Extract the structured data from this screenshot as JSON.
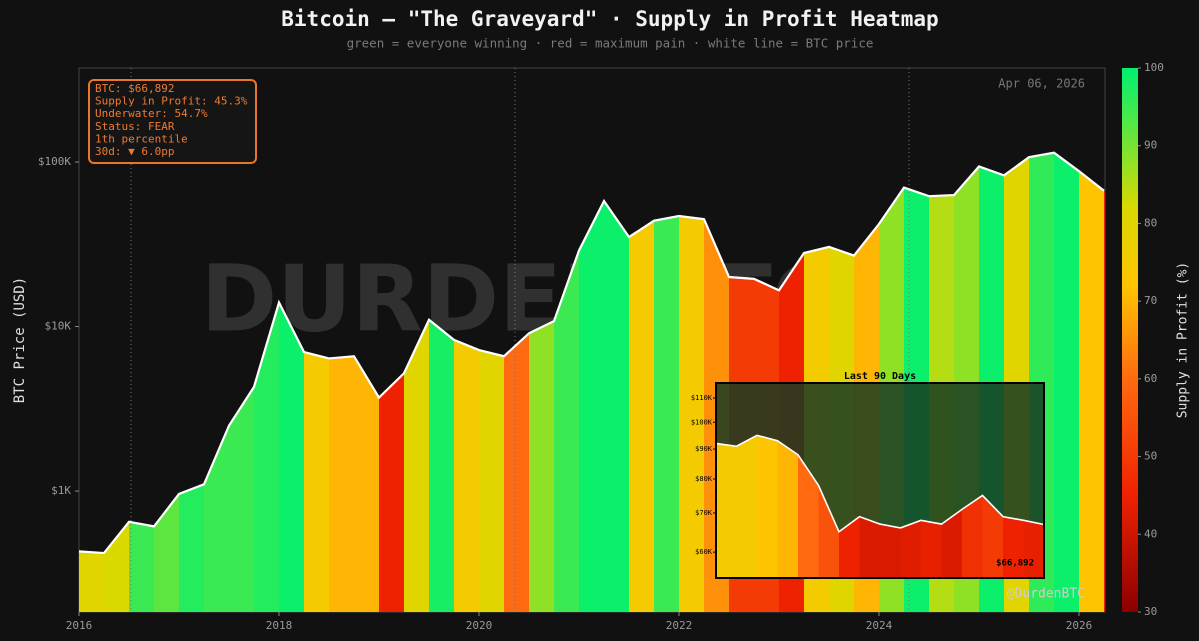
{
  "chart_data": {
    "type": "heatmap-line",
    "title": "Bitcoin — \"The Graveyard\"  ·  Supply in Profit Heatmap",
    "subtitle": "green = everyone winning  ·  red = maximum pain  ·  white line = BTC price",
    "y_label": "BTC Price (USD)",
    "colorbar_label": "Supply in Profit (%)",
    "date_label": "Apr 06, 2026",
    "watermark": "@DurdenBTC",
    "watermark_big": "DURDENBTC",
    "log_y": true,
    "xlim": [
      2016,
      2026.26
    ],
    "xticks": [
      2016,
      2018,
      2020,
      2022,
      2024,
      2026
    ],
    "ylim": [
      184,
      373000
    ],
    "yticks": [
      {
        "value": 1000,
        "label": "$1K"
      },
      {
        "value": 10000,
        "label": "$10K"
      },
      {
        "value": 100000,
        "label": "$100K"
      }
    ],
    "clim": [
      30,
      100
    ],
    "cticks": [
      30,
      40,
      50,
      60,
      70,
      80,
      90,
      100
    ],
    "colorscale": [
      {
        "value": 30,
        "color": "#8b0000"
      },
      {
        "value": 45,
        "color": "#ee2200"
      },
      {
        "value": 60,
        "color": "#ff6a10"
      },
      {
        "value": 72,
        "color": "#ffc400"
      },
      {
        "value": 82,
        "color": "#d9d900"
      },
      {
        "value": 92,
        "color": "#5ee640"
      },
      {
        "value": 100,
        "color": "#00f070"
      }
    ],
    "line_color": "#ffffff",
    "vlines": [
      2016.52,
      2020.36,
      2024.3
    ],
    "x": [
      2016.0,
      2016.25,
      2016.5,
      2016.75,
      2017.0,
      2017.25,
      2017.5,
      2017.75,
      2018.0,
      2018.25,
      2018.5,
      2018.75,
      2019.0,
      2019.25,
      2019.5,
      2019.75,
      2020.0,
      2020.25,
      2020.5,
      2020.75,
      2021.0,
      2021.25,
      2021.5,
      2021.75,
      2022.0,
      2022.25,
      2022.5,
      2022.75,
      2023.0,
      2023.25,
      2023.5,
      2023.75,
      2024.0,
      2024.25,
      2024.5,
      2024.75,
      2025.0,
      2025.25,
      2025.5,
      2025.75,
      2026.0,
      2026.25
    ],
    "series": [
      {
        "name": "BTC Price",
        "values": [
          430,
          420,
          650,
          610,
          960,
          1100,
          2500,
          4300,
          14000,
          7000,
          6400,
          6600,
          3700,
          5200,
          11000,
          8300,
          7200,
          6600,
          9100,
          10800,
          29000,
          58000,
          35000,
          44000,
          47000,
          45000,
          20000,
          19500,
          16600,
          28000,
          30500,
          27000,
          42000,
          70000,
          62000,
          63000,
          94000,
          83000,
          107000,
          114000,
          88000,
          66892
        ]
      },
      {
        "name": "Supply in Profit",
        "values": [
          80,
          82,
          95,
          92,
          97,
          95,
          95,
          97,
          99,
          75,
          70,
          70,
          45,
          80,
          98,
          75,
          80,
          60,
          88,
          95,
          99,
          99,
          75,
          95,
          75,
          65,
          50,
          50,
          45,
          75,
          80,
          70,
          88,
          99,
          85,
          88,
          99,
          80,
          96,
          99,
          72,
          45.3
        ]
      }
    ],
    "info_box": [
      "BTC: $66,892",
      "Supply in Profit: 45.3%",
      "Underwater: 54.7%",
      "Status: FEAR",
      "1th percentile",
      "30d: ▼ 6.0pp"
    ],
    "inset": {
      "title": "Last 90 Days",
      "price_label": "$66,892",
      "ylim": [
        54200,
        116700
      ],
      "yticks": [
        {
          "value": 60000,
          "label": "$60K"
        },
        {
          "value": 70000,
          "label": "$70K"
        },
        {
          "value": 80000,
          "label": "$80K"
        },
        {
          "value": 90000,
          "label": "$90K"
        },
        {
          "value": 100000,
          "label": "$100K"
        },
        {
          "value": 110000,
          "label": "$110K"
        }
      ],
      "price": [
        92000,
        91000,
        95000,
        93000,
        88000,
        78000,
        65000,
        69000,
        67000,
        66000,
        68000,
        67000,
        71000,
        75000,
        69000,
        68000,
        66892
      ],
      "supply": [
        75,
        75,
        72,
        70,
        60,
        55,
        45,
        42,
        42,
        43,
        44,
        42,
        48,
        50,
        45,
        44,
        45.3
      ]
    }
  }
}
